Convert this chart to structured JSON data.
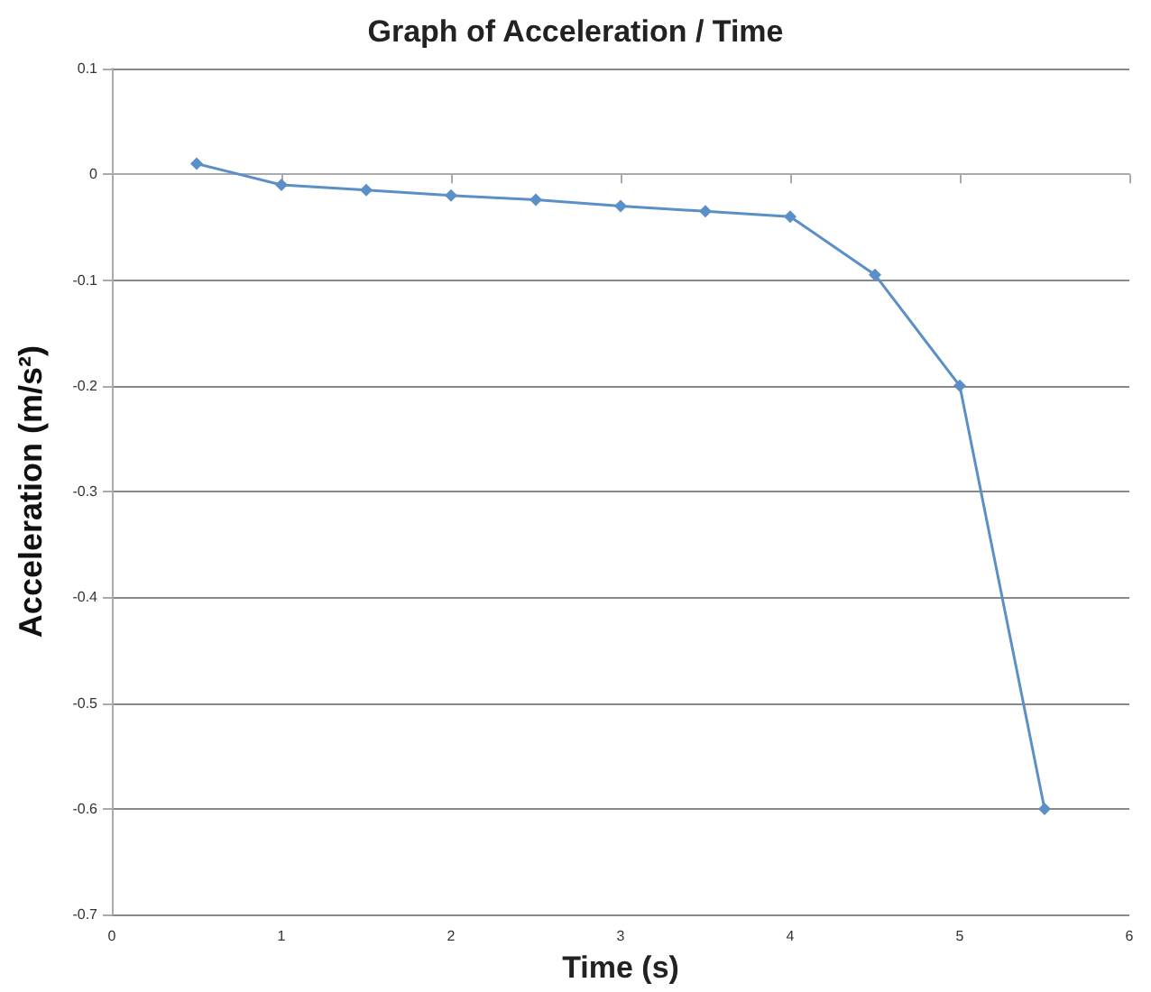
{
  "chart_data": {
    "type": "line",
    "title": "Graph of Acceleration / Time",
    "xlabel": "Time (s)",
    "ylabel": "Acceleration (m/s²)",
    "x": [
      0.5,
      1,
      1.5,
      2,
      2.5,
      3,
      3.5,
      4,
      4.5,
      5,
      5.5
    ],
    "series": [
      {
        "color": "#5b8fc7",
        "values": [
          0.01,
          -0.01,
          -0.015,
          -0.02,
          -0.024,
          -0.03,
          -0.035,
          -0.04,
          -0.095,
          -0.2,
          -0.6
        ]
      }
    ],
    "xlim": [
      0,
      6
    ],
    "xticks": [
      0,
      1,
      2,
      3,
      4,
      5,
      6
    ],
    "ylim": [
      -0.7,
      0.1
    ],
    "yticks": [
      0.1,
      0,
      -0.1,
      -0.2,
      -0.3,
      -0.4,
      -0.5,
      -0.6,
      -0.7
    ],
    "grid": "y",
    "marker": "diamond",
    "line_style": "solid"
  }
}
